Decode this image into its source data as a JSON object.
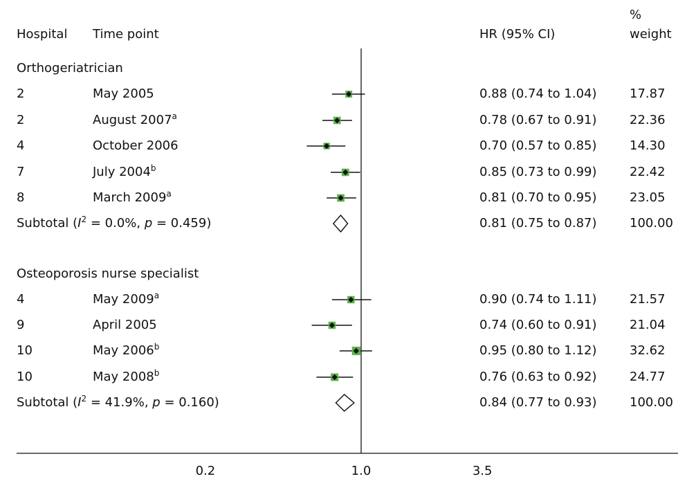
{
  "header": {
    "hospital": "Hospital",
    "time_point": "Time point",
    "hr": "HR (95% CI)",
    "weight_line1": "%",
    "weight_line2": "weight"
  },
  "chart_data": {
    "type": "forest",
    "scale": "log",
    "xticks": [
      "0.2",
      "1.0",
      "3.5"
    ],
    "xlim": [
      0.2,
      3.5
    ],
    "reference_line": 1.0,
    "colors": {
      "marker": "#5cb44d",
      "line": "#111111"
    },
    "groups": [
      {
        "name": "Orthogeriatrician",
        "rows": [
          {
            "hospital": "2",
            "time": "May 2005",
            "sup": "",
            "hr": 0.88,
            "lo": 0.74,
            "hi": 1.04,
            "ci_text": "0.88 (0.74 to 1.04)",
            "weight": 17.87,
            "weight_text": "17.87"
          },
          {
            "hospital": "2",
            "time": "August 2007",
            "sup": "a",
            "hr": 0.78,
            "lo": 0.67,
            "hi": 0.91,
            "ci_text": "0.78 (0.67 to 0.91)",
            "weight": 22.36,
            "weight_text": "22.36"
          },
          {
            "hospital": "4",
            "time": "October 2006",
            "sup": "",
            "hr": 0.7,
            "lo": 0.57,
            "hi": 0.85,
            "ci_text": "0.70 (0.57 to 0.85)",
            "weight": 14.3,
            "weight_text": "14.30"
          },
          {
            "hospital": "7",
            "time": "July 2004",
            "sup": "b",
            "hr": 0.85,
            "lo": 0.73,
            "hi": 0.99,
            "ci_text": "0.85 (0.73 to 0.99)",
            "weight": 22.42,
            "weight_text": "22.42"
          },
          {
            "hospital": "8",
            "time": "March 2009",
            "sup": "a",
            "hr": 0.81,
            "lo": 0.7,
            "hi": 0.95,
            "ci_text": "0.81 (0.70 to 0.95)",
            "weight": 23.05,
            "weight_text": "23.05"
          }
        ],
        "subtotal": {
          "label": "Subtotal (",
          "i2_letter": "I",
          "i2_sup": "2",
          "i2_rest": " = 0.0%, ",
          "p_letter": "p",
          "p_rest": " = 0.459)",
          "hr": 0.81,
          "lo": 0.75,
          "hi": 0.87,
          "ci_text": "0.81 (0.75 to 0.87)",
          "weight_text": "100.00"
        }
      },
      {
        "name": "Osteoporosis nurse specialist",
        "rows": [
          {
            "hospital": "4",
            "time": "May 2009",
            "sup": "a",
            "hr": 0.9,
            "lo": 0.74,
            "hi": 1.11,
            "ci_text": "0.90 (0.74 to 1.11)",
            "weight": 21.57,
            "weight_text": "21.57"
          },
          {
            "hospital": "9",
            "time": "April 2005",
            "sup": "",
            "hr": 0.74,
            "lo": 0.6,
            "hi": 0.91,
            "ci_text": "0.74 (0.60 to 0.91)",
            "weight": 21.04,
            "weight_text": "21.04"
          },
          {
            "hospital": "10",
            "time": "May 2006",
            "sup": "b",
            "hr": 0.95,
            "lo": 0.8,
            "hi": 1.12,
            "ci_text": "0.95 (0.80 to 1.12)",
            "weight": 32.62,
            "weight_text": "32.62"
          },
          {
            "hospital": "10",
            "time": "May 2008",
            "sup": "b",
            "hr": 0.76,
            "lo": 0.63,
            "hi": 0.92,
            "ci_text": "0.76 (0.63 to 0.92)",
            "weight": 24.77,
            "weight_text": "24.77"
          }
        ],
        "subtotal": {
          "label": "Subtotal (",
          "i2_letter": "I",
          "i2_sup": "2",
          "i2_rest": " = 41.9%, ",
          "p_letter": "p",
          "p_rest": " = 0.160)",
          "hr": 0.84,
          "lo": 0.77,
          "hi": 0.93,
          "ci_text": "0.84 (0.77 to 0.93)",
          "weight_text": "100.00"
        }
      }
    ]
  }
}
